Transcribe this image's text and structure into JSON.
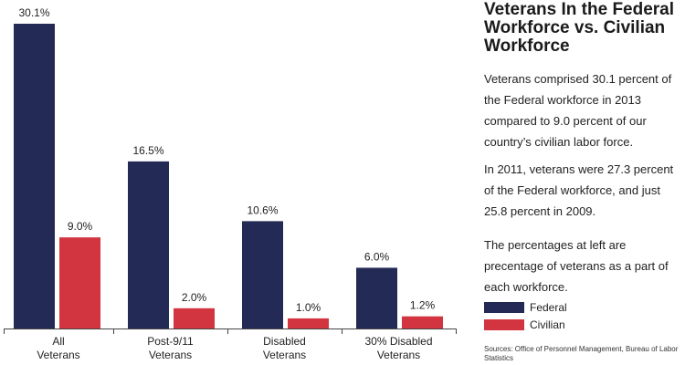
{
  "chart_data": {
    "type": "bar",
    "categories": [
      "All\nVeterans",
      "Post-9/11\nVeterans",
      "Disabled\nVeterans",
      "30% Disabled\nVeterans"
    ],
    "series": [
      {
        "name": "Federal",
        "values": [
          30.1,
          16.5,
          10.6,
          6.0
        ],
        "labels": [
          "30.1%",
          "16.5%",
          "10.6%",
          "6.0%"
        ]
      },
      {
        "name": "Civilian",
        "values": [
          9.0,
          2.0,
          1.0,
          1.2
        ],
        "labels": [
          "9.0%",
          "2.0%",
          "1.0%",
          "1.2%"
        ]
      }
    ],
    "ylim": [
      0,
      30.1
    ],
    "grid": false,
    "legend_position": "bottom-right"
  },
  "colors": {
    "federal": "#232a55",
    "civilian": "#d2353f"
  },
  "panel": {
    "title": "Veterans In the Federal Workforce vs. Civilian Workforce",
    "paragraph1": "Veterans comprised 30.1 percent of the Federal workforce in 2013 compared to 9.0 percent of our country’s civilian labor force.",
    "paragraph2": "In 2011, veterans were 27.3 percent of the Federal workforce, and just 25.8 percent in 2009.",
    "paragraph3": "The percentages at left are precentage of veterans as a part of each workforce.",
    "legend_federal": "Federal",
    "legend_civilian": "Civilian",
    "sources": "Sources: Office of Personnel Management, Bureau of Labor Statistics"
  }
}
